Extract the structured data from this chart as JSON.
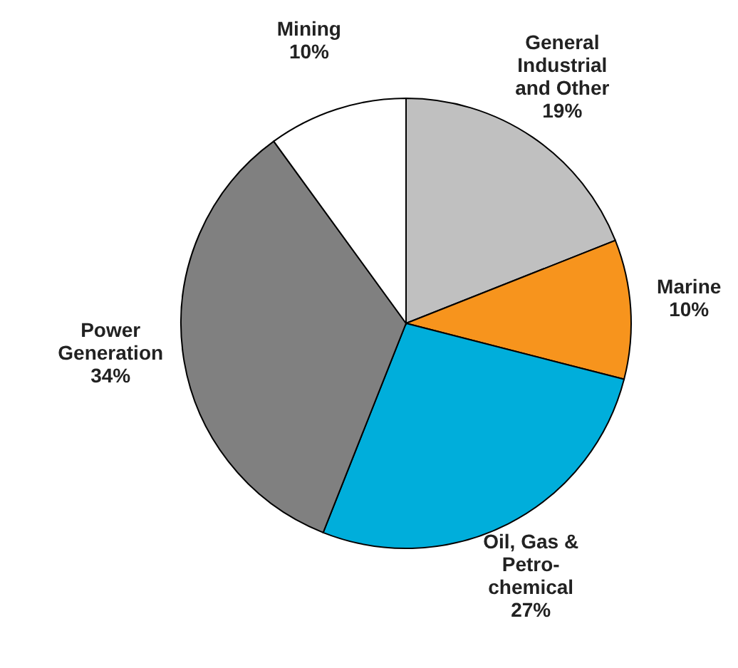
{
  "chart_data": {
    "type": "pie",
    "categories": [
      "General Industrial and Other",
      "Marine",
      "Oil, Gas & Petro-chemical",
      "Power Generation",
      "Mining"
    ],
    "values": [
      19,
      10,
      27,
      34,
      10
    ],
    "colors": [
      "#c0c0c0",
      "#f7941d",
      "#00aedb",
      "#808080",
      "#ffffff"
    ],
    "value_labels": [
      "19%",
      "10%",
      "27%",
      "34%",
      "10%"
    ]
  }
}
